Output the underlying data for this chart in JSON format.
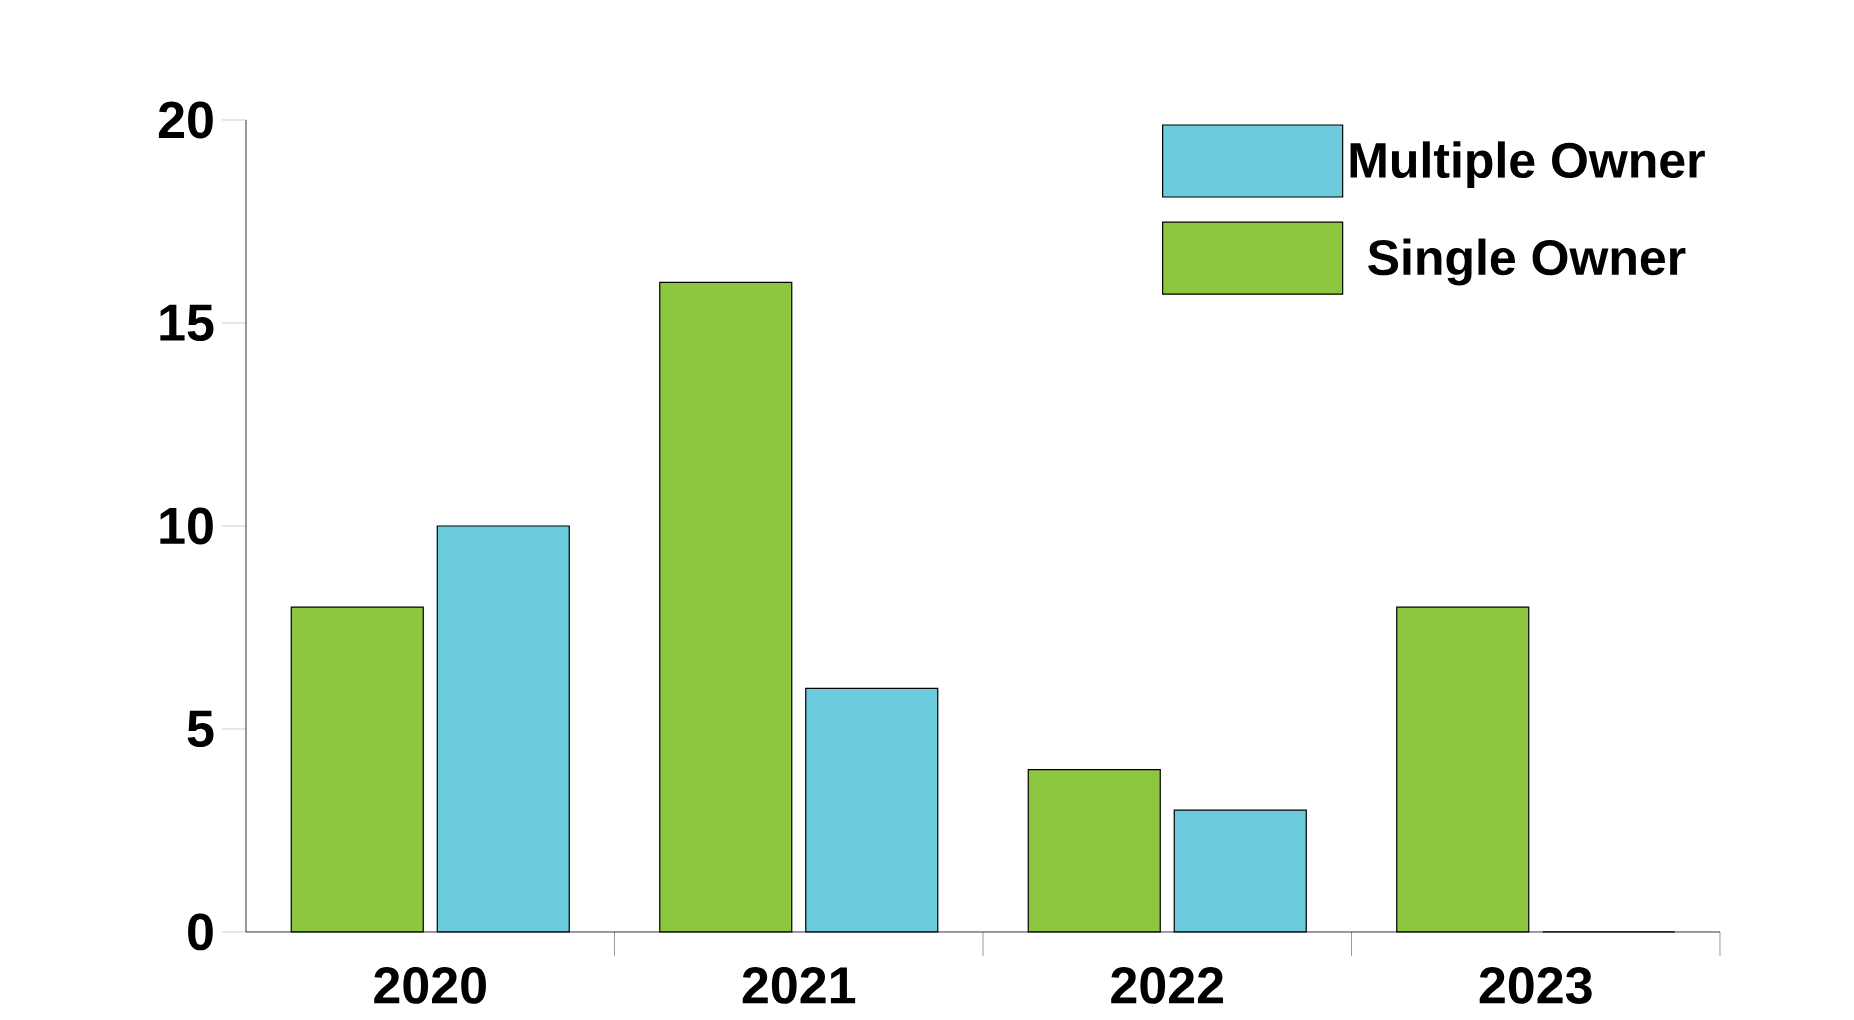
{
  "chart_data": {
    "type": "bar",
    "categories": [
      "2020",
      "2021",
      "2022",
      "2023"
    ],
    "series": [
      {
        "name": "Single Owner",
        "color": "#8dc63f",
        "values": [
          8,
          16,
          4,
          8
        ]
      },
      {
        "name": "Multiple Owner",
        "color": "#6ccbdc",
        "values": [
          10,
          6,
          3,
          0
        ]
      }
    ],
    "ylim": [
      0,
      20
    ],
    "yticks": [
      0,
      5,
      10,
      15,
      20
    ],
    "legend": "top right"
  }
}
